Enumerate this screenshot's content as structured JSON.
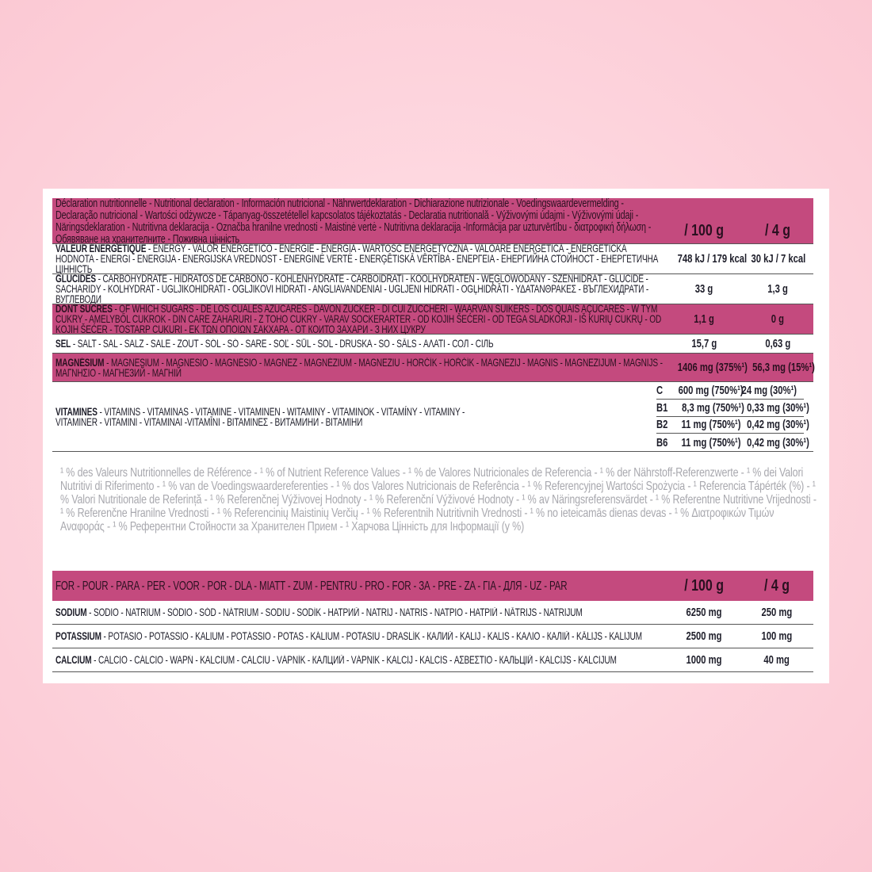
{
  "colors": {
    "accent": "#c44a7e",
    "background": "#fdd3dc",
    "footnote": "#a8a8ae"
  },
  "nutrition": {
    "title": "Déclaration nutritionnelle - Nutritional declaration - Información nutricional - Nährwertdeklaration - Dichiarazione nutrizionale - Voedingswaardevermelding - Declaração nutricional - Wartości odżywcze - Tápanyag-összetétellel kapcsolatos tájékoztatás - Declaratia nutritională - Výživovými údajmi - Výživovými údaji - Näringsdeklaration - Nutritivna deklaracija - Označba hranilne vrednosti - Maistinė vertė - Nutritivna deklaracija -Informācija par uzturvērtību - διατροφική δήλωση - Обявяване на хранителните - Поживна цінність",
    "col_100g": "/ 100 g",
    "col_4g": "/ 4 g",
    "rows": [
      {
        "bold": "VALEUR ÉNERGÉTIQUE",
        "rest": " - ENERGY - VALOR ENERGÉTICO - ENERGIE - ENERGIA - WARTOŚĆ ENERGETYCZNA - VALOARE ENERGETICĂ - ENERGETICKÁ HODNOTA - ENERGI - ENERGIJA - ENERGIJSKA VREDNOST - ENERGINĖ VERTĖ - ENERĢĒTISKĀ VĒRTĪBA - ΕΝΕΡΓΕΙΑ - ЕНЕРГИЙНА СТОЙНОСТ - ЕНЕРГЕТИЧНА ЦІННІСТЬ",
        "v100": "748 kJ / 179 kcal",
        "v4": "30 kJ / 7 kcal",
        "pink": false
      },
      {
        "bold": "GLUCIDES",
        "rest": " - CARBOHYDRATE - HIDRATOS DE CARBONO - KOHLENHYDRATE - CARBOIDRATI - KOOLHYDRATEN - WĘGLOWODANY - SZÉNHIDRÁT - GLUCIDE - SACHARIDY - KOLHYDRAT - UGLJIKOHIDRATI - OGLJIKOVI HIDRATI - ANGLIAVANDENIAI - UGLJENI HIDRATI - OGĻHIDRĀTI - ΥΔΑΤΑΝΘΡΑΚΕΣ - ВЪГЛЕХИДРАТИ - ВУГЛЕВОДИ",
        "v100": "33 g",
        "v4": "1,3 g",
        "pink": false
      },
      {
        "bold": "DONT SUCRES",
        "rest": " - OF WHICH SUGARS - DE LOS CUALES AZÚCARES - DAVON ZUCKER - DI CUI ZUCCHERI - WAARVAN SUIKERS - DOS QUAIS AÇÚCARES - W TYM CUKRY - AMELYBŐL CUKROK - DIN CARE ZAHARURI - Z TOHO CUKRY - VARAV SOCKERARTER - OD KOJIH ŠEĆERI - OD TEGA SLADKORJI - IŠ KURIŲ CUKRŲ - OD KOJIH ŠEĆER - TOSTARP CUKURI - ΕΚ ΤΩΝ ΟΠΟΙΩΝ ΣΑΚΧΑΡΑ - ОТ КОИТО ЗАХАРИ - З НИХ ЦУКРУ",
        "v100": "1,1 g",
        "v4": "0 g",
        "pink": true
      },
      {
        "bold": "SEL",
        "rest": " - SALT - SAL - SALZ - SALE - ZOUT - SÓL - SÓ - SARE - SOĽ - SŮL - SOL - DRUSKA - SO - SĀLS - ΑΛΑΤΙ - СОЛ - СІЛЬ",
        "v100": "15,7 g",
        "v4": "0,63 g",
        "pink": false
      },
      {
        "bold": "MAGNÉSIUM",
        "rest": " - MAGNESIUM - MAGNESIO - MAGNÉSIO - MAGNEZ - MAGNÉZIUM - MAGNEZIU - HORČÍK - HOŘČÍK - MAGNEZIJ - MAGNIS - MAGNEZIJUM - MAGNIJS - ΜΑΓΝΗΣΙΟ - МАГНЕЗИЙ - МАГНІЙ",
        "v100": "1406 mg (375%¹)",
        "v4": "56,3 mg (15%¹)",
        "pink": true
      }
    ],
    "vitamins": {
      "bold": "VITAMINES",
      "rest": " - VITAMINS - VITAMINAS - VITAMINE - VITAMINEN - WITAMINY - VITAMINOK - VITAMÍNY - VITAMINY - VITAMINER - VITAMINI - VITAMINAI -VITAMĪNI - ΒΙΤΑΜΙΝΕΣ - ВИТАМИНИ - ВІТАМІНИ",
      "items": [
        {
          "key": "C",
          "v100": "600 mg (750%¹)",
          "v4": "24 mg (30%¹)"
        },
        {
          "key": "B1",
          "v100": "8,3 mg (750%¹)",
          "v4": "0,33 mg (30%¹)"
        },
        {
          "key": "B2",
          "v100": "11 mg (750%¹)",
          "v4": "0,42 mg (30%¹)"
        },
        {
          "key": "B6",
          "v100": "11 mg (750%¹)",
          "v4": "0,42 mg (30%¹)"
        }
      ]
    },
    "footnote": "¹ % des Valeurs Nutritionnelles de Référence - ¹ % of Nutrient Reference Values - ¹ % de Valores Nutricionales de Referencia - ¹ % der Nährstoff-Referenzwerte - ¹ % dei Valori Nutritivi di Riferimento - ¹ % van de Voedingswaardereferenties - ¹ % dos Valores Nutricionais de Referência - ¹ % Referencyjnej Wartości Spożycia - ¹ Referencia Tápérték (%) - ¹ % Valori Nutritionale de Referință - ¹ % Referenčnej Výživovej Hodnoty - ¹ % Referenční Výživové Hodnoty - ¹ % av Näringsreferensvärdet - ¹ % Referentne Nutritivne Vrijednosti - ¹ % Referenčne Hranilne Vrednosti - ¹ % Referencinių Maistinių Verčių - ¹ % Referentnih Nutritivnih Vrednosti - ¹ % no ieteicamās dienas devas - ¹ % Διατροφικών Τιμών Αναφοράς - ¹ % Референтни Стойности за Хранителен Прием - ¹ Харчова Цінність для Інформації (у %)"
  },
  "minerals": {
    "title": "FOR - POUR - PARA - PER - VOOR - POR - DLA - MIATT - ZUM - PENTRU - PRO - FÖR - ЗА - PRE - ZA - ΓΙΑ - ДЛЯ - UŽ - PAR",
    "col_100g": "/ 100 g",
    "col_4g": "/ 4 g",
    "rows": [
      {
        "bold": "SODIUM",
        "rest": " - SODIO - NATRIUM - SÓDIO - SÓD - NÁTRIUM - SODIU - SODÍK - НАТРИЙ - NATRIJ - NATRIS - ΝΑΤΡΙΟ - НАТРІЙ - NĀTRIJS - NATRIJUM",
        "v100": "6250 mg",
        "v4": "250 mg"
      },
      {
        "bold": "POTASSIUM",
        "rest": " - POTASIO - POTASSIO - KALIUM - POTÁSSIO - POTAS - KÁLIUM - POTASIU - DRASLÍK - КАЛИЙ - KALIJ - KALIS - ΚΑΛΙΟ - КАЛІЙ - KĀLIJS - KALIJUM",
        "v100": "2500 mg",
        "v4": "100 mg"
      },
      {
        "bold": "CALCIUM",
        "rest": " - CALCIO - CÁLCIO - WAPŃ - KALCIUM - CALCIU - VÁPNÍK - КАЛЦИЙ - VÁPNIK - KALCIJ - KALCIS - ΑΣΒΕΣΤΙΟ - КАЛЬЦІЙ - KALCIJS - KALCIJUM",
        "v100": "1000 mg",
        "v4": "40 mg"
      }
    ]
  }
}
